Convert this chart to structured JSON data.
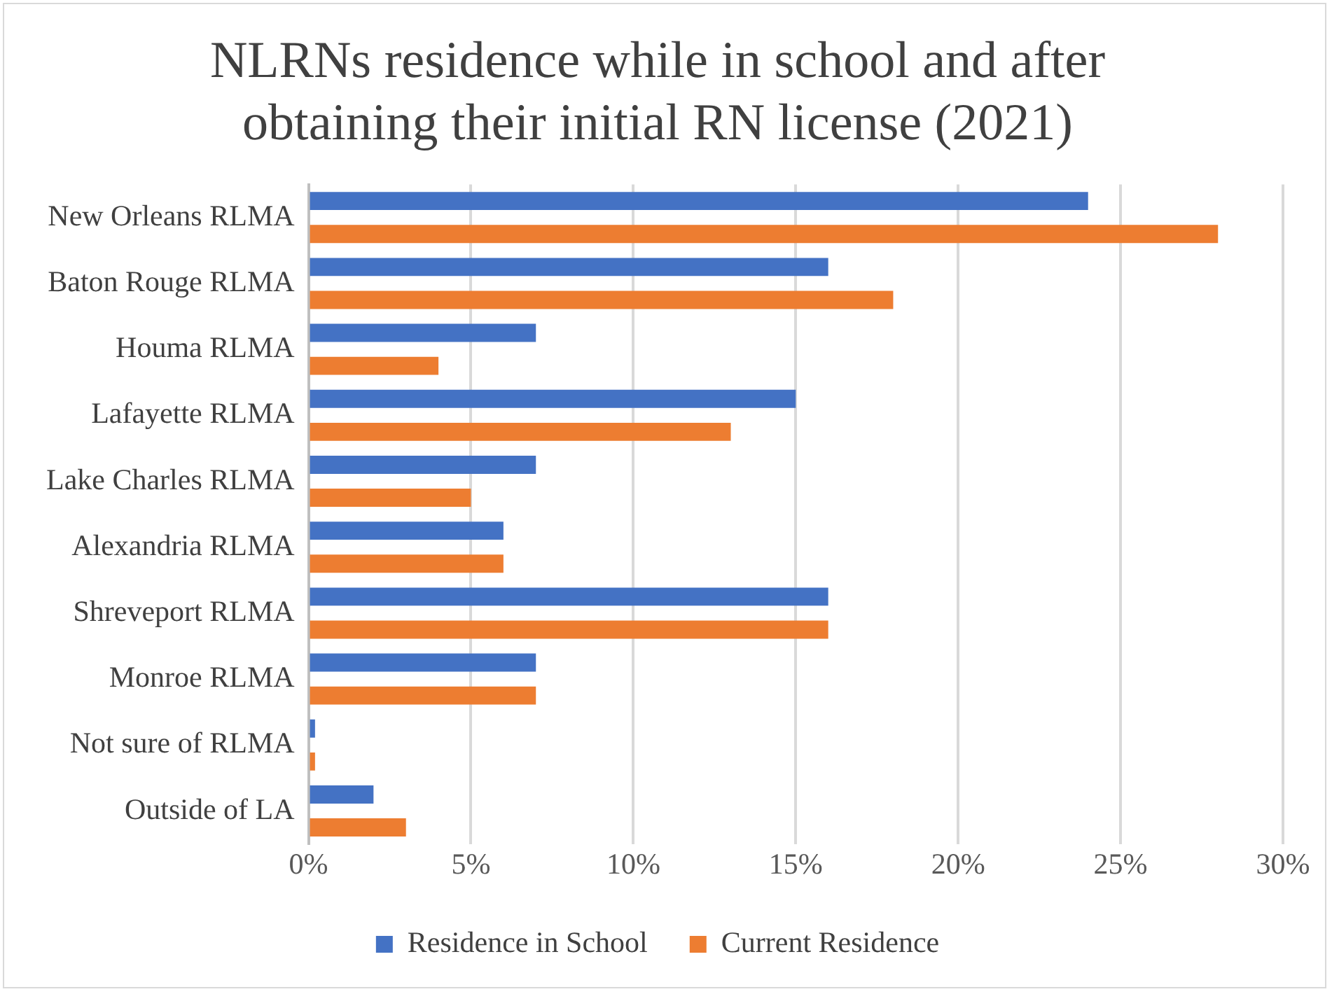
{
  "chart_data": {
    "type": "bar",
    "orientation": "horizontal",
    "title": "NLRNs residence while in school and after obtaining their initial RN license (2021)",
    "categories": [
      "New Orleans RLMA",
      "Baton Rouge RLMA",
      "Houma RLMA",
      "Lafayette RLMA",
      "Lake Charles RLMA",
      "Alexandria RLMA",
      "Shreveport RLMA",
      "Monroe RLMA",
      "Not sure of RLMA",
      "Outside of LA"
    ],
    "series": [
      {
        "name": "Residence in School",
        "color": "#4472c4",
        "values": [
          24,
          16,
          7,
          15,
          7,
          6,
          16,
          7,
          0.2,
          2
        ]
      },
      {
        "name": "Current Residence",
        "color": "#ed7d31",
        "values": [
          28,
          18,
          4,
          13,
          5,
          6,
          16,
          7,
          0.2,
          3
        ]
      }
    ],
    "xlim": [
      0,
      30
    ],
    "xticks": [
      {
        "value": 0,
        "label": "0%"
      },
      {
        "value": 5,
        "label": "5%"
      },
      {
        "value": 10,
        "label": "10%"
      },
      {
        "value": 15,
        "label": "15%"
      },
      {
        "value": 20,
        "label": "20%"
      },
      {
        "value": 25,
        "label": "25%"
      },
      {
        "value": 30,
        "label": "30%"
      }
    ],
    "grid": "x",
    "legend": "bottom"
  }
}
